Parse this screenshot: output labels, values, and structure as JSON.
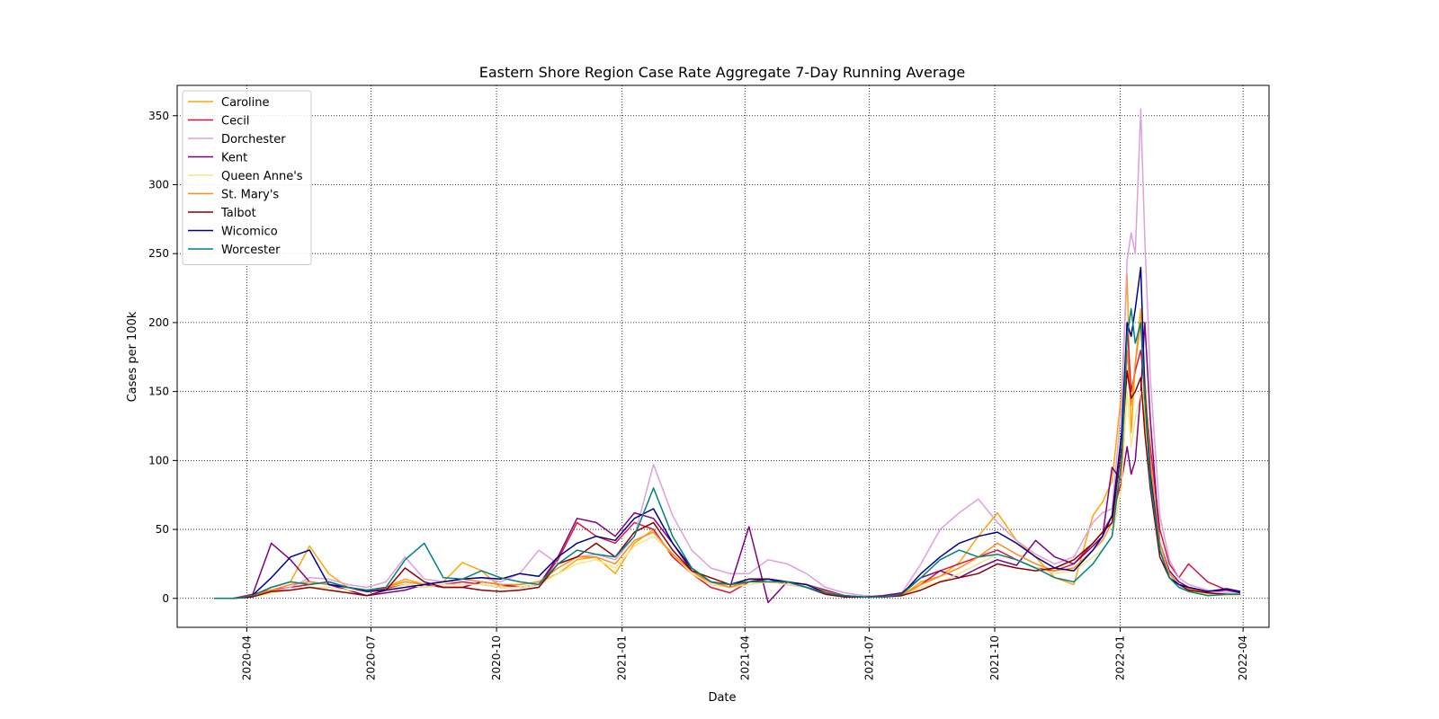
{
  "chart_data": {
    "type": "line",
    "title": "Eastern Shore Region Case Rate Aggregate 7-Day Running Average",
    "xlabel": "Date",
    "ylabel": "Cases per 100k",
    "x_axis_type": "date",
    "xlim": [
      "2020-02-10",
      "2022-04-20"
    ],
    "ylim": [
      -21,
      372
    ],
    "x_ticks": [
      "2020-04",
      "2020-07",
      "2020-10",
      "2021-01",
      "2021-04",
      "2021-07",
      "2021-10",
      "2022-01",
      "2022-04"
    ],
    "y_ticks": [
      0,
      50,
      100,
      150,
      200,
      250,
      300,
      350
    ],
    "grid": true,
    "grid_style": "dotted",
    "legend_position": "top-left",
    "x": [
      "2020-03-08",
      "2020-03-22",
      "2020-04-05",
      "2020-04-19",
      "2020-05-03",
      "2020-05-17",
      "2020-05-31",
      "2020-06-14",
      "2020-06-28",
      "2020-07-12",
      "2020-07-26",
      "2020-08-09",
      "2020-08-23",
      "2020-09-06",
      "2020-09-20",
      "2020-10-04",
      "2020-10-18",
      "2020-11-01",
      "2020-11-15",
      "2020-11-29",
      "2020-12-13",
      "2020-12-27",
      "2021-01-10",
      "2021-01-24",
      "2021-02-07",
      "2021-02-21",
      "2021-03-07",
      "2021-03-21",
      "2021-04-04",
      "2021-04-18",
      "2021-05-02",
      "2021-05-16",
      "2021-05-30",
      "2021-06-13",
      "2021-06-27",
      "2021-07-11",
      "2021-07-25",
      "2021-08-08",
      "2021-08-22",
      "2021-09-05",
      "2021-09-19",
      "2021-10-03",
      "2021-10-17",
      "2021-10-31",
      "2021-11-14",
      "2021-11-28",
      "2021-12-12",
      "2021-12-19",
      "2021-12-26",
      "2022-01-02",
      "2022-01-06",
      "2022-01-09",
      "2022-01-12",
      "2022-01-16",
      "2022-01-19",
      "2022-01-23",
      "2022-01-30",
      "2022-02-06",
      "2022-02-13",
      "2022-02-20",
      "2022-03-06",
      "2022-03-20",
      "2022-03-30"
    ],
    "series": [
      {
        "name": "Caroline",
        "color": "#ffa500",
        "values": [
          0,
          0,
          2,
          8,
          12,
          38,
          18,
          8,
          6,
          8,
          14,
          10,
          12,
          26,
          20,
          8,
          10,
          12,
          18,
          28,
          30,
          18,
          40,
          50,
          30,
          20,
          10,
          8,
          14,
          12,
          10,
          8,
          4,
          2,
          1,
          1,
          2,
          12,
          16,
          26,
          45,
          62,
          42,
          30,
          15,
          10,
          60,
          70,
          85,
          150,
          235,
          120,
          170,
          210,
          130,
          95,
          40,
          18,
          10,
          6,
          4,
          3,
          2
        ]
      },
      {
        "name": "Cecil",
        "color": "#dc143c",
        "values": [
          0,
          0,
          3,
          6,
          8,
          10,
          12,
          8,
          6,
          7,
          10,
          8,
          10,
          12,
          10,
          8,
          8,
          10,
          28,
          55,
          45,
          40,
          55,
          50,
          30,
          18,
          8,
          4,
          12,
          14,
          10,
          8,
          4,
          2,
          1,
          1,
          2,
          10,
          20,
          25,
          30,
          35,
          28,
          22,
          20,
          25,
          40,
          48,
          60,
          85,
          200,
          150,
          165,
          180,
          150,
          110,
          50,
          25,
          15,
          25,
          12,
          6,
          4
        ]
      },
      {
        "name": "Dorchester",
        "color": "#dda0dd",
        "values": [
          0,
          0,
          2,
          5,
          8,
          15,
          14,
          10,
          8,
          12,
          30,
          14,
          12,
          14,
          15,
          12,
          18,
          35,
          25,
          30,
          32,
          28,
          45,
          97,
          60,
          35,
          22,
          18,
          18,
          28,
          25,
          18,
          8,
          4,
          2,
          1,
          4,
          25,
          50,
          62,
          72,
          55,
          42,
          32,
          25,
          30,
          55,
          62,
          65,
          140,
          245,
          265,
          250,
          355,
          260,
          160,
          60,
          28,
          15,
          10,
          6,
          4,
          3
        ]
      },
      {
        "name": "Kent",
        "color": "#800080",
        "values": [
          0,
          0,
          2,
          40,
          28,
          12,
          10,
          6,
          2,
          4,
          6,
          10,
          8,
          8,
          12,
          10,
          8,
          10,
          30,
          58,
          55,
          45,
          62,
          58,
          40,
          20,
          12,
          8,
          52,
          -3,
          12,
          10,
          6,
          2,
          1,
          2,
          4,
          15,
          20,
          15,
          22,
          28,
          24,
          42,
          30,
          25,
          38,
          45,
          95,
          85,
          110,
          90,
          100,
          150,
          200,
          130,
          40,
          20,
          12,
          8,
          5,
          6,
          4
        ]
      },
      {
        "name": "Queen Anne's",
        "color": "#f0e68c",
        "values": [
          0,
          0,
          1,
          4,
          6,
          8,
          8,
          6,
          5,
          6,
          10,
          8,
          10,
          10,
          10,
          8,
          8,
          10,
          18,
          25,
          28,
          22,
          38,
          45,
          32,
          18,
          10,
          8,
          10,
          12,
          10,
          8,
          4,
          2,
          1,
          1,
          2,
          8,
          12,
          18,
          25,
          32,
          28,
          22,
          18,
          20,
          30,
          35,
          45,
          80,
          150,
          110,
          130,
          150,
          140,
          90,
          35,
          15,
          8,
          5,
          3,
          2,
          2
        ]
      },
      {
        "name": "St. Mary's",
        "color": "#ff8c1a",
        "values": [
          0,
          0,
          2,
          6,
          10,
          12,
          10,
          8,
          6,
          8,
          12,
          10,
          12,
          14,
          12,
          10,
          10,
          12,
          22,
          30,
          30,
          25,
          42,
          48,
          32,
          20,
          12,
          8,
          12,
          14,
          12,
          10,
          5,
          2,
          1,
          1,
          2,
          10,
          16,
          22,
          30,
          40,
          32,
          25,
          20,
          22,
          35,
          42,
          55,
          95,
          180,
          140,
          170,
          200,
          160,
          100,
          40,
          18,
          10,
          7,
          4,
          3,
          3
        ]
      },
      {
        "name": "Talbot",
        "color": "#8b0000",
        "values": [
          0,
          0,
          1,
          5,
          6,
          8,
          6,
          4,
          2,
          6,
          22,
          12,
          8,
          8,
          6,
          5,
          6,
          8,
          25,
          30,
          40,
          30,
          48,
          55,
          35,
          20,
          15,
          10,
          12,
          14,
          12,
          8,
          3,
          1,
          1,
          1,
          2,
          6,
          12,
          15,
          18,
          25,
          22,
          20,
          22,
          28,
          40,
          48,
          55,
          110,
          165,
          145,
          150,
          160,
          120,
          80,
          30,
          15,
          10,
          6,
          4,
          3,
          3
        ]
      },
      {
        "name": "Wicomico",
        "color": "#00008b",
        "values": [
          0,
          0,
          2,
          15,
          30,
          35,
          10,
          8,
          5,
          6,
          8,
          10,
          12,
          14,
          15,
          14,
          18,
          16,
          30,
          40,
          45,
          42,
          58,
          65,
          40,
          22,
          12,
          10,
          14,
          14,
          12,
          10,
          4,
          2,
          1,
          1,
          3,
          18,
          30,
          40,
          45,
          48,
          40,
          30,
          22,
          20,
          35,
          45,
          60,
          120,
          200,
          190,
          210,
          240,
          150,
          90,
          35,
          15,
          10,
          8,
          5,
          7,
          5
        ]
      },
      {
        "name": "Worcester",
        "color": "#008080",
        "values": [
          0,
          0,
          2,
          8,
          12,
          10,
          12,
          8,
          6,
          8,
          28,
          40,
          15,
          14,
          20,
          15,
          12,
          10,
          25,
          35,
          32,
          30,
          45,
          80,
          45,
          22,
          12,
          10,
          12,
          12,
          12,
          8,
          4,
          2,
          1,
          1,
          3,
          15,
          28,
          35,
          30,
          32,
          28,
          22,
          15,
          12,
          25,
          35,
          45,
          100,
          190,
          210,
          185,
          200,
          145,
          85,
          35,
          15,
          8,
          5,
          2,
          3,
          3
        ]
      }
    ]
  }
}
